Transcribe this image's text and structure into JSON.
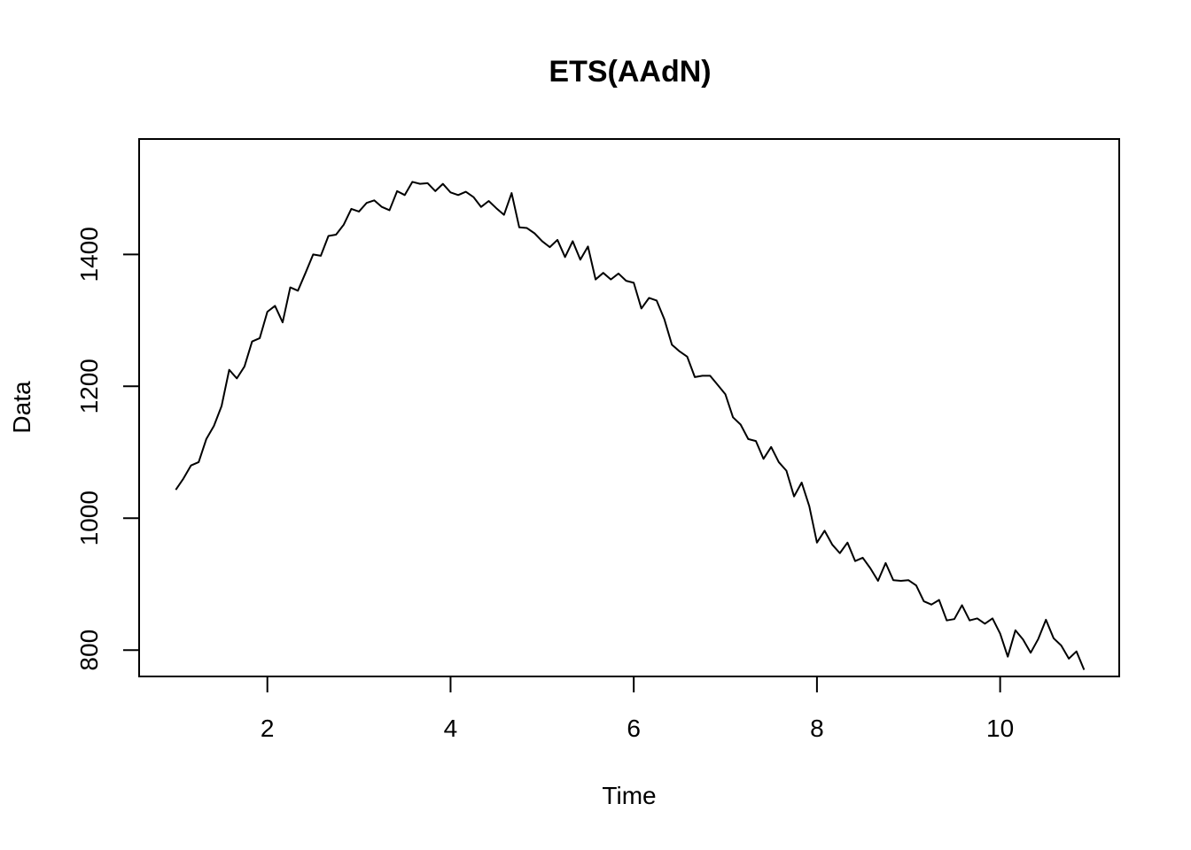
{
  "chart_data": {
    "type": "line",
    "title": "ETS(AAdN)",
    "xlabel": "Time",
    "ylabel": "Data",
    "xlim": [
      0.6,
      11.3
    ],
    "ylim": [
      760,
      1575
    ],
    "x_ticks": [
      2,
      4,
      6,
      8,
      10
    ],
    "y_ticks": [
      800,
      1000,
      1200,
      1400
    ],
    "x_start": 1,
    "x_step": 0.0833333,
    "grid": false,
    "legend": "none",
    "line_color": "#000000",
    "series": [
      {
        "values": [
          1043,
          1060,
          1080,
          1085,
          1120,
          1140,
          1170,
          1225,
          1212,
          1230,
          1268,
          1273,
          1313,
          1322,
          1297,
          1350,
          1345,
          1372,
          1400,
          1398,
          1428,
          1430,
          1445,
          1469,
          1465,
          1478,
          1482,
          1472,
          1467,
          1496,
          1490,
          1510,
          1507,
          1508,
          1496,
          1507,
          1494,
          1490,
          1495,
          1487,
          1472,
          1481,
          1470,
          1460,
          1493,
          1441,
          1440,
          1432,
          1420,
          1411,
          1422,
          1396,
          1420,
          1392,
          1412,
          1362,
          1372,
          1362,
          1371,
          1360,
          1357,
          1318,
          1334,
          1330,
          1302,
          1263,
          1253,
          1245,
          1214,
          1216,
          1216,
          1202,
          1188,
          1153,
          1142,
          1120,
          1117,
          1090,
          1108,
          1085,
          1072,
          1033,
          1054,
          1018,
          963,
          981,
          960,
          947,
          963,
          935,
          940,
          924,
          905,
          932,
          906,
          905,
          906,
          898,
          874,
          869,
          876,
          845,
          847,
          868,
          845,
          848,
          840,
          848,
          825,
          790,
          830,
          816,
          796,
          817,
          846,
          818,
          807,
          787,
          798,
          770
        ]
      }
    ]
  }
}
